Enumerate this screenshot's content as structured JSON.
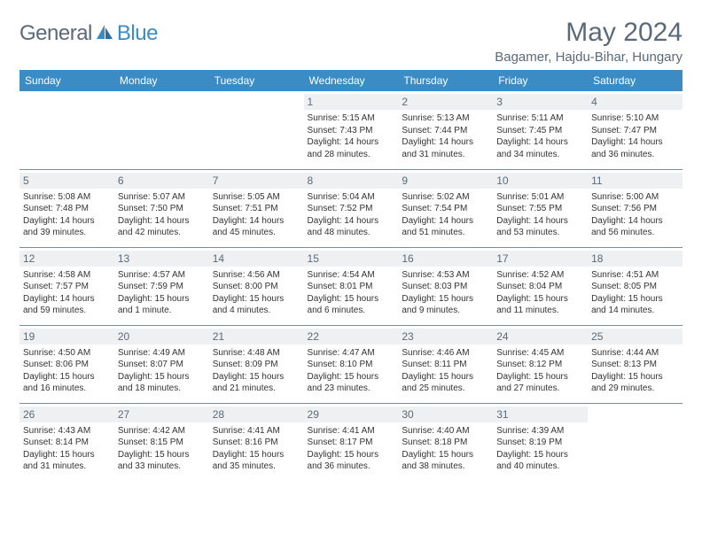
{
  "logo": {
    "text1": "General",
    "text2": "Blue"
  },
  "title": "May 2024",
  "location": "Bagamer, Hajdu-Bihar, Hungary",
  "colors": {
    "header_bg": "#3b8bc4",
    "header_text": "#ffffff",
    "daynum_bg": "#eef0f2",
    "muted_text": "#5a6a78",
    "border": "#7a8a9a",
    "body_text": "#333333",
    "page_bg": "#ffffff"
  },
  "typography": {
    "title_fontsize": 30,
    "location_fontsize": 15,
    "weekday_fontsize": 12,
    "daynum_fontsize": 12,
    "info_fontsize": 10,
    "logo_fontsize": 24
  },
  "weekdays": [
    "Sunday",
    "Monday",
    "Tuesday",
    "Wednesday",
    "Thursday",
    "Friday",
    "Saturday"
  ],
  "weeks": [
    [
      null,
      null,
      null,
      {
        "n": "1",
        "sr": "5:15 AM",
        "ss": "7:43 PM",
        "dl": "14 hours and 28 minutes."
      },
      {
        "n": "2",
        "sr": "5:13 AM",
        "ss": "7:44 PM",
        "dl": "14 hours and 31 minutes."
      },
      {
        "n": "3",
        "sr": "5:11 AM",
        "ss": "7:45 PM",
        "dl": "14 hours and 34 minutes."
      },
      {
        "n": "4",
        "sr": "5:10 AM",
        "ss": "7:47 PM",
        "dl": "14 hours and 36 minutes."
      }
    ],
    [
      {
        "n": "5",
        "sr": "5:08 AM",
        "ss": "7:48 PM",
        "dl": "14 hours and 39 minutes."
      },
      {
        "n": "6",
        "sr": "5:07 AM",
        "ss": "7:50 PM",
        "dl": "14 hours and 42 minutes."
      },
      {
        "n": "7",
        "sr": "5:05 AM",
        "ss": "7:51 PM",
        "dl": "14 hours and 45 minutes."
      },
      {
        "n": "8",
        "sr": "5:04 AM",
        "ss": "7:52 PM",
        "dl": "14 hours and 48 minutes."
      },
      {
        "n": "9",
        "sr": "5:02 AM",
        "ss": "7:54 PM",
        "dl": "14 hours and 51 minutes."
      },
      {
        "n": "10",
        "sr": "5:01 AM",
        "ss": "7:55 PM",
        "dl": "14 hours and 53 minutes."
      },
      {
        "n": "11",
        "sr": "5:00 AM",
        "ss": "7:56 PM",
        "dl": "14 hours and 56 minutes."
      }
    ],
    [
      {
        "n": "12",
        "sr": "4:58 AM",
        "ss": "7:57 PM",
        "dl": "14 hours and 59 minutes."
      },
      {
        "n": "13",
        "sr": "4:57 AM",
        "ss": "7:59 PM",
        "dl": "15 hours and 1 minute."
      },
      {
        "n": "14",
        "sr": "4:56 AM",
        "ss": "8:00 PM",
        "dl": "15 hours and 4 minutes."
      },
      {
        "n": "15",
        "sr": "4:54 AM",
        "ss": "8:01 PM",
        "dl": "15 hours and 6 minutes."
      },
      {
        "n": "16",
        "sr": "4:53 AM",
        "ss": "8:03 PM",
        "dl": "15 hours and 9 minutes."
      },
      {
        "n": "17",
        "sr": "4:52 AM",
        "ss": "8:04 PM",
        "dl": "15 hours and 11 minutes."
      },
      {
        "n": "18",
        "sr": "4:51 AM",
        "ss": "8:05 PM",
        "dl": "15 hours and 14 minutes."
      }
    ],
    [
      {
        "n": "19",
        "sr": "4:50 AM",
        "ss": "8:06 PM",
        "dl": "15 hours and 16 minutes."
      },
      {
        "n": "20",
        "sr": "4:49 AM",
        "ss": "8:07 PM",
        "dl": "15 hours and 18 minutes."
      },
      {
        "n": "21",
        "sr": "4:48 AM",
        "ss": "8:09 PM",
        "dl": "15 hours and 21 minutes."
      },
      {
        "n": "22",
        "sr": "4:47 AM",
        "ss": "8:10 PM",
        "dl": "15 hours and 23 minutes."
      },
      {
        "n": "23",
        "sr": "4:46 AM",
        "ss": "8:11 PM",
        "dl": "15 hours and 25 minutes."
      },
      {
        "n": "24",
        "sr": "4:45 AM",
        "ss": "8:12 PM",
        "dl": "15 hours and 27 minutes."
      },
      {
        "n": "25",
        "sr": "4:44 AM",
        "ss": "8:13 PM",
        "dl": "15 hours and 29 minutes."
      }
    ],
    [
      {
        "n": "26",
        "sr": "4:43 AM",
        "ss": "8:14 PM",
        "dl": "15 hours and 31 minutes."
      },
      {
        "n": "27",
        "sr": "4:42 AM",
        "ss": "8:15 PM",
        "dl": "15 hours and 33 minutes."
      },
      {
        "n": "28",
        "sr": "4:41 AM",
        "ss": "8:16 PM",
        "dl": "15 hours and 35 minutes."
      },
      {
        "n": "29",
        "sr": "4:41 AM",
        "ss": "8:17 PM",
        "dl": "15 hours and 36 minutes."
      },
      {
        "n": "30",
        "sr": "4:40 AM",
        "ss": "8:18 PM",
        "dl": "15 hours and 38 minutes."
      },
      {
        "n": "31",
        "sr": "4:39 AM",
        "ss": "8:19 PM",
        "dl": "15 hours and 40 minutes."
      },
      null
    ]
  ],
  "labels": {
    "sunrise": "Sunrise:",
    "sunset": "Sunset:",
    "daylight": "Daylight:"
  }
}
